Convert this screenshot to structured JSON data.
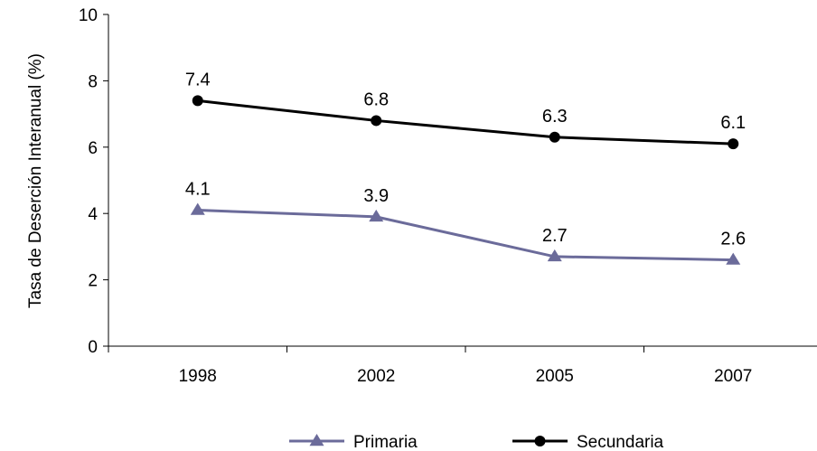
{
  "chart_data": {
    "type": "line",
    "categories": [
      "1998",
      "2002",
      "2005",
      "2007"
    ],
    "series": [
      {
        "name": "Primaria",
        "values": [
          4.1,
          3.9,
          2.7,
          2.6
        ],
        "labels": [
          "4.1",
          "3.9",
          "2.7",
          "2.6"
        ],
        "color": "#6b6b9a",
        "marker": "triangle"
      },
      {
        "name": "Secundaria",
        "values": [
          7.4,
          6.8,
          6.3,
          6.1
        ],
        "labels": [
          "7.4",
          "6.8",
          "6.3",
          "6.1"
        ],
        "color": "#000000",
        "marker": "circle"
      }
    ],
    "title": "",
    "xlabel": "",
    "ylabel": "Tasa de Deserción Interanual (%)",
    "ylim": [
      0,
      10
    ],
    "yticks": [
      0,
      2,
      4,
      6,
      8,
      10
    ],
    "ytick_labels": [
      "0",
      "2",
      "4",
      "6",
      "8",
      "10"
    ],
    "grid": false,
    "legend_position": "bottom"
  }
}
